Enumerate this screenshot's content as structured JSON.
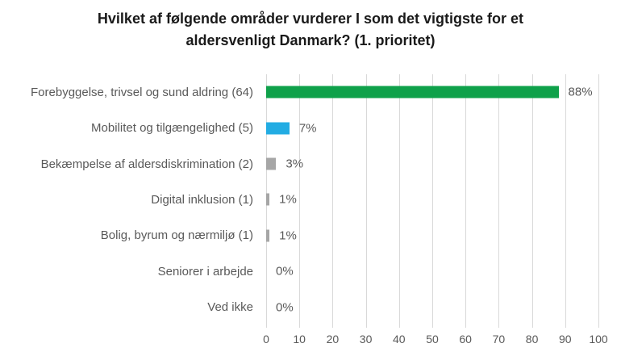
{
  "title_lines": [
    "Hvilket af følgende områder vurderer I som det vigtigste for et",
    "aldersvenligt Danmark? (1. prioritet)"
  ],
  "chart_data": {
    "type": "bar",
    "orientation": "horizontal",
    "title": "Hvilket af følgende områder vurderer I som det vigtigste for et aldersvenligt Danmark? (1. prioritet)",
    "categories": [
      "Forebyggelse, trivsel og sund aldring (64)",
      "Mobilitet og tilgængelighed (5)",
      "Bekæmpelse af aldersdiskrimination (2)",
      "Digital inklusion (1)",
      "Bolig, byrum og nærmiljø (1)",
      "Seniorer i arbejde",
      "Ved ikke"
    ],
    "values": [
      88,
      7,
      3,
      1,
      1,
      0,
      0
    ],
    "value_labels": [
      "88%",
      "7%",
      "3%",
      "1%",
      "1%",
      "0%",
      "0%"
    ],
    "bar_colors": [
      "#0fa14a",
      "#22ace3",
      "#a6a6a6",
      "#a6a6a6",
      "#a6a6a6",
      "#a6a6a6",
      "#a6a6a6"
    ],
    "xlim": [
      0,
      100
    ],
    "x_ticks": [
      0,
      10,
      20,
      30,
      40,
      50,
      60,
      70,
      80,
      90,
      100
    ],
    "xlabel": "",
    "ylabel": "",
    "legend": null,
    "grid": "vertical",
    "colors": {
      "gridline": "#d9d9d9",
      "axis_text": "#595959",
      "label_text": "#595959",
      "title_text": "#1a1a1a",
      "background": "#ffffff"
    }
  }
}
